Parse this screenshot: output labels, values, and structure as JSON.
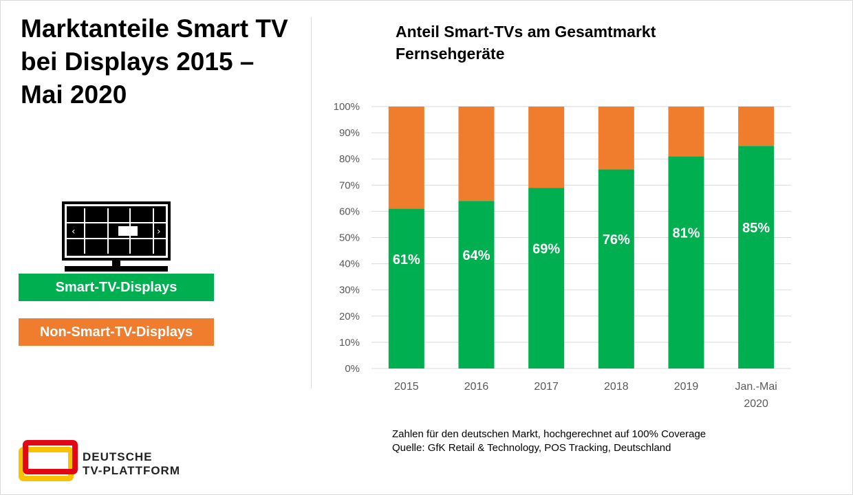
{
  "page": {
    "title": "Marktanteile Smart TV bei Displays 2015 – Mai 2020"
  },
  "legend": {
    "smart_label": "Smart-TV-Displays",
    "nonsmart_label": "Non-Smart-TV-Displays",
    "smart_color": "#00b050",
    "nonsmart_color": "#f07c2e"
  },
  "footnote": {
    "line1": "Zahlen für den deutschen Markt, hochgerechnet auf 100% Coverage",
    "line2": "Quelle: GfK Retail & Technology, POS Tracking, Deutschland"
  },
  "logo": {
    "line1": "DEUTSCHE",
    "line2": "TV-PLATTFORM"
  },
  "chart_data": {
    "type": "bar",
    "stacked": true,
    "title": "Anteil Smart-TVs am Gesamtmarkt Fernsehgeräte",
    "categories": [
      "2015",
      "2016",
      "2017",
      "2018",
      "2019",
      "Jan.-Mai 2020"
    ],
    "series": [
      {
        "values": [
          61,
          64,
          69,
          76,
          81,
          85
        ],
        "color": "#00b050",
        "data_labels": [
          "61%",
          "64%",
          "69%",
          "76%",
          "81%",
          "85%"
        ]
      },
      {
        "values": [
          39,
          36,
          31,
          24,
          19,
          15
        ],
        "color": "#f07c2e"
      }
    ],
    "ylim": [
      0,
      100
    ],
    "yticks": [
      "0%",
      "10%",
      "20%",
      "30%",
      "40%",
      "50%",
      "60%",
      "70%",
      "80%",
      "90%",
      "100%"
    ],
    "grid": true,
    "xlabel": "",
    "ylabel": ""
  }
}
